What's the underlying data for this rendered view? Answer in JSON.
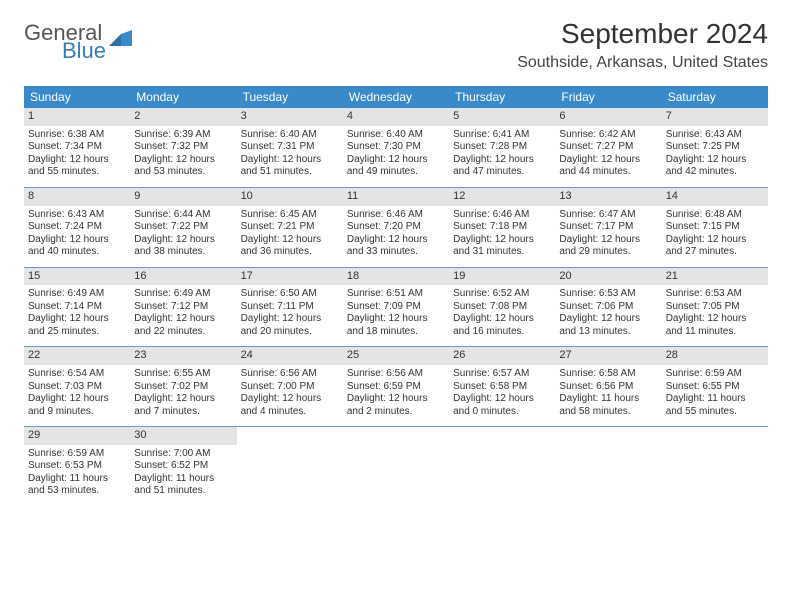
{
  "brand": {
    "general": "General",
    "blue": "Blue"
  },
  "colors": {
    "header_bg": "#3a8ac9",
    "header_text": "#ffffff",
    "num_bg": "#e4e4e4",
    "week_border": "#6f9bc4",
    "text": "#333333",
    "logo_gray": "#555555",
    "logo_blue": "#3a7db6"
  },
  "title": "September 2024",
  "location": "Southside, Arkansas, United States",
  "dow": [
    "Sunday",
    "Monday",
    "Tuesday",
    "Wednesday",
    "Thursday",
    "Friday",
    "Saturday"
  ],
  "weeks": [
    [
      {
        "n": "1",
        "sr": "Sunrise: 6:38 AM",
        "ss": "Sunset: 7:34 PM",
        "d1": "Daylight: 12 hours",
        "d2": "and 55 minutes."
      },
      {
        "n": "2",
        "sr": "Sunrise: 6:39 AM",
        "ss": "Sunset: 7:32 PM",
        "d1": "Daylight: 12 hours",
        "d2": "and 53 minutes."
      },
      {
        "n": "3",
        "sr": "Sunrise: 6:40 AM",
        "ss": "Sunset: 7:31 PM",
        "d1": "Daylight: 12 hours",
        "d2": "and 51 minutes."
      },
      {
        "n": "4",
        "sr": "Sunrise: 6:40 AM",
        "ss": "Sunset: 7:30 PM",
        "d1": "Daylight: 12 hours",
        "d2": "and 49 minutes."
      },
      {
        "n": "5",
        "sr": "Sunrise: 6:41 AM",
        "ss": "Sunset: 7:28 PM",
        "d1": "Daylight: 12 hours",
        "d2": "and 47 minutes."
      },
      {
        "n": "6",
        "sr": "Sunrise: 6:42 AM",
        "ss": "Sunset: 7:27 PM",
        "d1": "Daylight: 12 hours",
        "d2": "and 44 minutes."
      },
      {
        "n": "7",
        "sr": "Sunrise: 6:43 AM",
        "ss": "Sunset: 7:25 PM",
        "d1": "Daylight: 12 hours",
        "d2": "and 42 minutes."
      }
    ],
    [
      {
        "n": "8",
        "sr": "Sunrise: 6:43 AM",
        "ss": "Sunset: 7:24 PM",
        "d1": "Daylight: 12 hours",
        "d2": "and 40 minutes."
      },
      {
        "n": "9",
        "sr": "Sunrise: 6:44 AM",
        "ss": "Sunset: 7:22 PM",
        "d1": "Daylight: 12 hours",
        "d2": "and 38 minutes."
      },
      {
        "n": "10",
        "sr": "Sunrise: 6:45 AM",
        "ss": "Sunset: 7:21 PM",
        "d1": "Daylight: 12 hours",
        "d2": "and 36 minutes."
      },
      {
        "n": "11",
        "sr": "Sunrise: 6:46 AM",
        "ss": "Sunset: 7:20 PM",
        "d1": "Daylight: 12 hours",
        "d2": "and 33 minutes."
      },
      {
        "n": "12",
        "sr": "Sunrise: 6:46 AM",
        "ss": "Sunset: 7:18 PM",
        "d1": "Daylight: 12 hours",
        "d2": "and 31 minutes."
      },
      {
        "n": "13",
        "sr": "Sunrise: 6:47 AM",
        "ss": "Sunset: 7:17 PM",
        "d1": "Daylight: 12 hours",
        "d2": "and 29 minutes."
      },
      {
        "n": "14",
        "sr": "Sunrise: 6:48 AM",
        "ss": "Sunset: 7:15 PM",
        "d1": "Daylight: 12 hours",
        "d2": "and 27 minutes."
      }
    ],
    [
      {
        "n": "15",
        "sr": "Sunrise: 6:49 AM",
        "ss": "Sunset: 7:14 PM",
        "d1": "Daylight: 12 hours",
        "d2": "and 25 minutes."
      },
      {
        "n": "16",
        "sr": "Sunrise: 6:49 AM",
        "ss": "Sunset: 7:12 PM",
        "d1": "Daylight: 12 hours",
        "d2": "and 22 minutes."
      },
      {
        "n": "17",
        "sr": "Sunrise: 6:50 AM",
        "ss": "Sunset: 7:11 PM",
        "d1": "Daylight: 12 hours",
        "d2": "and 20 minutes."
      },
      {
        "n": "18",
        "sr": "Sunrise: 6:51 AM",
        "ss": "Sunset: 7:09 PM",
        "d1": "Daylight: 12 hours",
        "d2": "and 18 minutes."
      },
      {
        "n": "19",
        "sr": "Sunrise: 6:52 AM",
        "ss": "Sunset: 7:08 PM",
        "d1": "Daylight: 12 hours",
        "d2": "and 16 minutes."
      },
      {
        "n": "20",
        "sr": "Sunrise: 6:53 AM",
        "ss": "Sunset: 7:06 PM",
        "d1": "Daylight: 12 hours",
        "d2": "and 13 minutes."
      },
      {
        "n": "21",
        "sr": "Sunrise: 6:53 AM",
        "ss": "Sunset: 7:05 PM",
        "d1": "Daylight: 12 hours",
        "d2": "and 11 minutes."
      }
    ],
    [
      {
        "n": "22",
        "sr": "Sunrise: 6:54 AM",
        "ss": "Sunset: 7:03 PM",
        "d1": "Daylight: 12 hours",
        "d2": "and 9 minutes."
      },
      {
        "n": "23",
        "sr": "Sunrise: 6:55 AM",
        "ss": "Sunset: 7:02 PM",
        "d1": "Daylight: 12 hours",
        "d2": "and 7 minutes."
      },
      {
        "n": "24",
        "sr": "Sunrise: 6:56 AM",
        "ss": "Sunset: 7:00 PM",
        "d1": "Daylight: 12 hours",
        "d2": "and 4 minutes."
      },
      {
        "n": "25",
        "sr": "Sunrise: 6:56 AM",
        "ss": "Sunset: 6:59 PM",
        "d1": "Daylight: 12 hours",
        "d2": "and 2 minutes."
      },
      {
        "n": "26",
        "sr": "Sunrise: 6:57 AM",
        "ss": "Sunset: 6:58 PM",
        "d1": "Daylight: 12 hours",
        "d2": "and 0 minutes."
      },
      {
        "n": "27",
        "sr": "Sunrise: 6:58 AM",
        "ss": "Sunset: 6:56 PM",
        "d1": "Daylight: 11 hours",
        "d2": "and 58 minutes."
      },
      {
        "n": "28",
        "sr": "Sunrise: 6:59 AM",
        "ss": "Sunset: 6:55 PM",
        "d1": "Daylight: 11 hours",
        "d2": "and 55 minutes."
      }
    ],
    [
      {
        "n": "29",
        "sr": "Sunrise: 6:59 AM",
        "ss": "Sunset: 6:53 PM",
        "d1": "Daylight: 11 hours",
        "d2": "and 53 minutes."
      },
      {
        "n": "30",
        "sr": "Sunrise: 7:00 AM",
        "ss": "Sunset: 6:52 PM",
        "d1": "Daylight: 11 hours",
        "d2": "and 51 minutes."
      },
      {
        "empty": true
      },
      {
        "empty": true
      },
      {
        "empty": true
      },
      {
        "empty": true
      },
      {
        "empty": true
      }
    ]
  ]
}
